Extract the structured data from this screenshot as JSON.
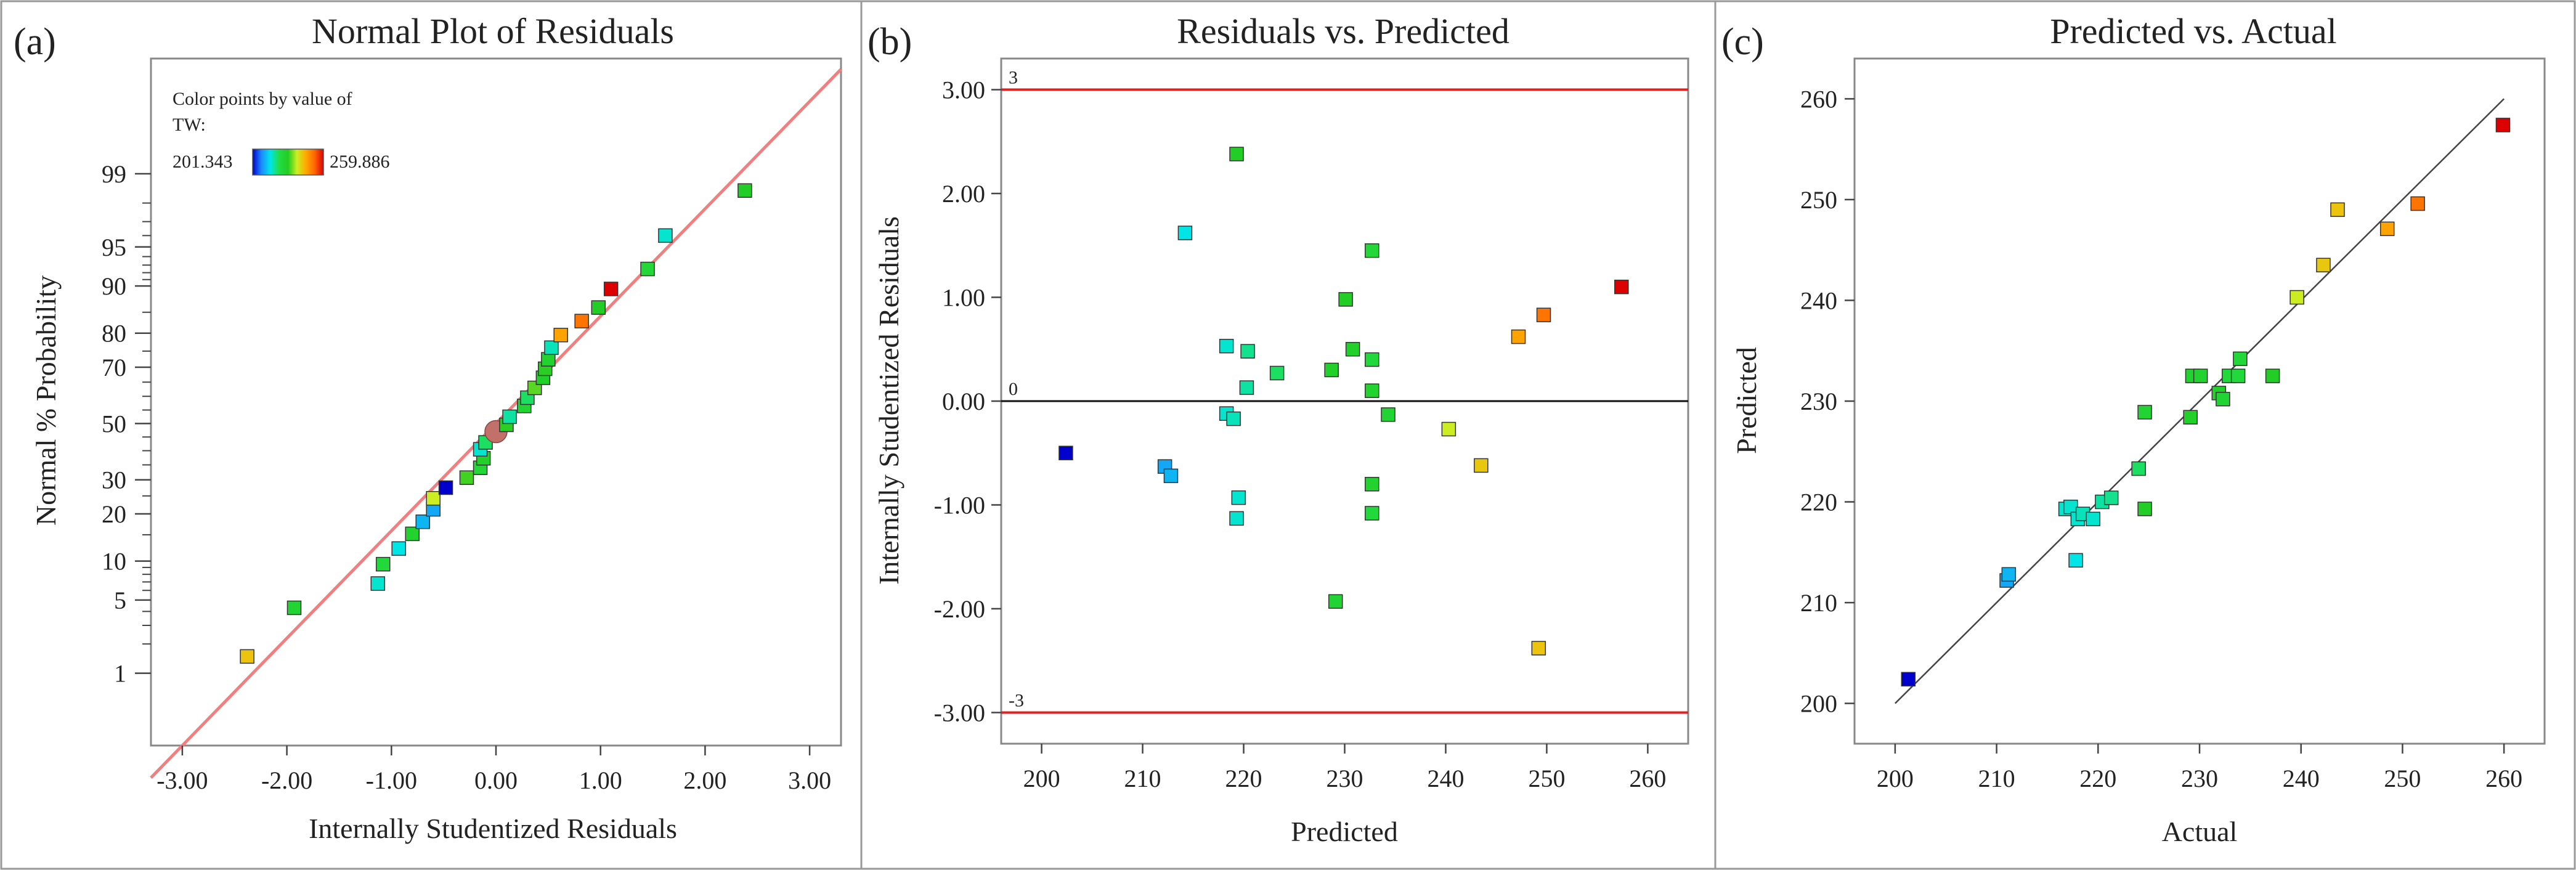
{
  "colors": {
    "colormap": [
      "#0000cc",
      "#1a8cff",
      "#00e5e5",
      "#22dd44",
      "#22cc22",
      "#ccee22",
      "#ffaa00",
      "#ff6600",
      "#dd0000"
    ],
    "fit_line_pink": "#f08080",
    "limit_line_red": "#dd2222",
    "frame": "#888888",
    "marker_edge": "#333333",
    "fit_line_dark": "#444444"
  },
  "chart_data": [
    {
      "type": "scatter",
      "panel_label": "(a)",
      "title": "Normal Plot of Residuals",
      "xlabel": "Internally Studentized Residuals",
      "ylabel": "Normal % Probability",
      "xlim": [
        -3.3,
        3.3
      ],
      "x_ticks": [
        -3,
        -2,
        -1,
        0,
        1,
        2,
        3
      ],
      "x_tick_labels": [
        "-3.00",
        "-2.00",
        "-1.00",
        "0.00",
        "1.00",
        "2.00",
        "3.00"
      ],
      "y_scale": "normal-probability",
      "y_ticks": [
        1,
        5,
        10,
        20,
        30,
        50,
        70,
        80,
        90,
        95,
        99
      ],
      "y_tick_labels": [
        "1",
        "5",
        "10",
        "20",
        "30",
        "50",
        "70",
        "80",
        "90",
        "95",
        "99"
      ],
      "reference_line": "normal",
      "legend": {
        "title_line1": "Color points by value of",
        "title_line2": "TW:",
        "min_label": "201.343",
        "max_label": "259.886",
        "min_value": 201.343,
        "max_value": 259.886
      },
      "points": [
        {
          "x": -2.38,
          "p": 1.5,
          "c": 242.5
        },
        {
          "x": -1.93,
          "p": 4.3,
          "c": 227
        },
        {
          "x": -1.13,
          "p": 6.8,
          "c": 217
        },
        {
          "x": -1.08,
          "p": 9.5,
          "c": 225
        },
        {
          "x": -0.93,
          "p": 12.2,
          "c": 216
        },
        {
          "x": -0.8,
          "p": 15.2,
          "c": 228
        },
        {
          "x": -0.7,
          "p": 18.0,
          "c": 212
        },
        {
          "x": -0.6,
          "p": 21.2,
          "c": 211
        },
        {
          "x": -0.6,
          "p": 24.3,
          "c": 238
        },
        {
          "x": -0.48,
          "p": 27.5,
          "c": 201.343
        },
        {
          "x": -0.28,
          "p": 30.7,
          "c": 232
        },
        {
          "x": -0.15,
          "p": 34.0,
          "c": 226
        },
        {
          "x": -0.12,
          "p": 37.3,
          "c": 229
        },
        {
          "x": -0.15,
          "p": 40.5,
          "c": 217
        },
        {
          "x": -0.1,
          "p": 43.0,
          "c": 222
        },
        {
          "x": 0.0,
          "p": 47.0,
          "c": 236,
          "large": true
        },
        {
          "x": 0.1,
          "p": 49.5,
          "c": 231
        },
        {
          "x": 0.13,
          "p": 52.5,
          "c": 219
        },
        {
          "x": 0.27,
          "p": 56.5,
          "c": 227
        },
        {
          "x": 0.3,
          "p": 59.5,
          "c": 222
        },
        {
          "x": 0.37,
          "p": 63.0,
          "c": 233
        },
        {
          "x": 0.45,
          "p": 66.5,
          "c": 229
        },
        {
          "x": 0.47,
          "p": 69.5,
          "c": 231
        },
        {
          "x": 0.5,
          "p": 72.5,
          "c": 228
        },
        {
          "x": 0.53,
          "p": 76.0,
          "c": 218
        },
        {
          "x": 0.62,
          "p": 79.5,
          "c": 246
        },
        {
          "x": 0.82,
          "p": 83.0,
          "c": 251
        },
        {
          "x": 0.98,
          "p": 86.0,
          "c": 230
        },
        {
          "x": 1.1,
          "p": 89.5,
          "c": 259.886
        },
        {
          "x": 1.45,
          "p": 92.5,
          "c": 226
        },
        {
          "x": 1.62,
          "p": 96.0,
          "c": 217
        },
        {
          "x": 2.38,
          "p": 98.5,
          "c": 230
        }
      ]
    },
    {
      "type": "scatter",
      "panel_label": "(b)",
      "title": "Residuals vs. Predicted",
      "xlabel": "Predicted",
      "ylabel": "Internally Studentized Residuals",
      "xlim": [
        196,
        264
      ],
      "ylim": [
        -3.3,
        3.3
      ],
      "x_ticks": [
        200,
        210,
        220,
        230,
        240,
        250,
        260
      ],
      "x_tick_labels": [
        "200",
        "210",
        "220",
        "230",
        "240",
        "250",
        "260"
      ],
      "y_ticks": [
        -3,
        -2,
        -1,
        0,
        1,
        2,
        3
      ],
      "y_tick_labels": [
        "-3.00",
        "-2.00",
        "-1.00",
        "0.00",
        "1.00",
        "2.00",
        "3.00"
      ],
      "reference_lines": [
        {
          "y": 3,
          "label": "3",
          "kind": "limit"
        },
        {
          "y": 0,
          "label": "0",
          "kind": "zero"
        },
        {
          "y": -3,
          "label": "-3",
          "kind": "limit"
        }
      ],
      "points": [
        {
          "x": 202.4,
          "y": -0.5,
          "c": 201.343
        },
        {
          "x": 212.2,
          "y": -0.63,
          "c": 211
        },
        {
          "x": 212.8,
          "y": -0.72,
          "c": 212
        },
        {
          "x": 214.2,
          "y": 1.62,
          "c": 216
        },
        {
          "x": 218.3,
          "y": 0.53,
          "c": 217
        },
        {
          "x": 218.3,
          "y": -0.12,
          "c": 217
        },
        {
          "x": 219.0,
          "y": -0.17,
          "c": 218
        },
        {
          "x": 219.3,
          "y": 2.38,
          "c": 230
        },
        {
          "x": 219.5,
          "y": -0.93,
          "c": 217
        },
        {
          "x": 219.3,
          "y": -1.13,
          "c": 217
        },
        {
          "x": 220.3,
          "y": 0.13,
          "c": 219
        },
        {
          "x": 220.4,
          "y": 0.48,
          "c": 220
        },
        {
          "x": 223.3,
          "y": 0.27,
          "c": 222
        },
        {
          "x": 228.7,
          "y": 0.3,
          "c": 229
        },
        {
          "x": 229.1,
          "y": -1.93,
          "c": 227
        },
        {
          "x": 230.1,
          "y": 0.98,
          "c": 230
        },
        {
          "x": 230.8,
          "y": 0.5,
          "c": 229
        },
        {
          "x": 232.7,
          "y": 1.45,
          "c": 226
        },
        {
          "x": 232.7,
          "y": 0.4,
          "c": 225
        },
        {
          "x": 232.7,
          "y": 0.1,
          "c": 228
        },
        {
          "x": 232.7,
          "y": -0.8,
          "c": 228
        },
        {
          "x": 232.7,
          "y": -1.08,
          "c": 225
        },
        {
          "x": 234.3,
          "y": -0.13,
          "c": 227
        },
        {
          "x": 240.3,
          "y": -0.27,
          "c": 238
        },
        {
          "x": 243.5,
          "y": -0.62,
          "c": 242
        },
        {
          "x": 247.2,
          "y": 0.62,
          "c": 246
        },
        {
          "x": 249.2,
          "y": -2.38,
          "c": 242.5
        },
        {
          "x": 249.7,
          "y": 0.83,
          "c": 251
        },
        {
          "x": 257.4,
          "y": 1.1,
          "c": 259.886
        }
      ]
    },
    {
      "type": "scatter",
      "panel_label": "(c)",
      "title": "Predicted vs. Actual",
      "xlabel": "Actual",
      "ylabel": "Predicted",
      "xlim": [
        196,
        264
      ],
      "ylim": [
        196,
        264
      ],
      "x_ticks": [
        200,
        210,
        220,
        230,
        240,
        250,
        260
      ],
      "x_tick_labels": [
        "200",
        "210",
        "220",
        "230",
        "240",
        "250",
        "260"
      ],
      "y_ticks": [
        200,
        210,
        220,
        230,
        240,
        250,
        260
      ],
      "y_tick_labels": [
        "200",
        "210",
        "220",
        "230",
        "240",
        "250",
        "260"
      ],
      "reference_line": "y=x (200 to 260)",
      "points": [
        {
          "x": 201.3,
          "y": 202.4,
          "c": 201.343
        },
        {
          "x": 211.0,
          "y": 212.2,
          "c": 211
        },
        {
          "x": 211.2,
          "y": 212.8,
          "c": 212
        },
        {
          "x": 216.8,
          "y": 219.3,
          "c": 217
        },
        {
          "x": 217.3,
          "y": 219.5,
          "c": 217
        },
        {
          "x": 217.8,
          "y": 214.2,
          "c": 216
        },
        {
          "x": 218.0,
          "y": 218.3,
          "c": 217
        },
        {
          "x": 218.5,
          "y": 218.8,
          "c": 218
        },
        {
          "x": 219.5,
          "y": 218.3,
          "c": 217
        },
        {
          "x": 220.4,
          "y": 220.0,
          "c": 219
        },
        {
          "x": 221.3,
          "y": 220.4,
          "c": 220
        },
        {
          "x": 224.0,
          "y": 223.3,
          "c": 222
        },
        {
          "x": 224.6,
          "y": 228.9,
          "c": 227
        },
        {
          "x": 224.6,
          "y": 219.3,
          "c": 230
        },
        {
          "x": 229.1,
          "y": 228.4,
          "c": 229
        },
        {
          "x": 229.3,
          "y": 232.5,
          "c": 228
        },
        {
          "x": 230.1,
          "y": 232.5,
          "c": 228
        },
        {
          "x": 231.9,
          "y": 230.8,
          "c": 229
        },
        {
          "x": 232.3,
          "y": 230.2,
          "c": 227
        },
        {
          "x": 232.9,
          "y": 232.5,
          "c": 225
        },
        {
          "x": 233.8,
          "y": 232.5,
          "c": 225
        },
        {
          "x": 234.0,
          "y": 234.2,
          "c": 226
        },
        {
          "x": 237.2,
          "y": 232.5,
          "c": 230
        },
        {
          "x": 239.6,
          "y": 240.3,
          "c": 238
        },
        {
          "x": 242.2,
          "y": 243.5,
          "c": 242
        },
        {
          "x": 243.6,
          "y": 249.0,
          "c": 242.5
        },
        {
          "x": 248.5,
          "y": 247.1,
          "c": 246
        },
        {
          "x": 251.5,
          "y": 249.6,
          "c": 251
        },
        {
          "x": 259.9,
          "y": 257.4,
          "c": 259.886
        }
      ]
    }
  ]
}
